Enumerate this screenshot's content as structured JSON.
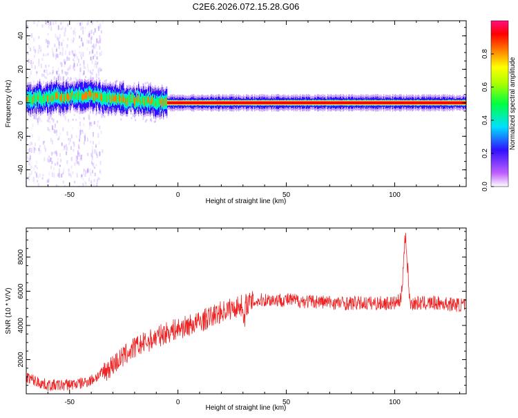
{
  "title": "C2E6.2026.072.15.28.G06",
  "chart_data": [
    {
      "type": "heatmap",
      "name": "spectrogram",
      "xlabel": "Height of straight line (km)",
      "ylabel": "Frequency (Hz)",
      "xlim": [
        -70,
        133
      ],
      "ylim": [
        -50,
        49
      ],
      "x_ticks": [
        -50,
        0,
        50,
        100
      ],
      "x_tick_labels": [
        "-50",
        "0",
        "50",
        "100"
      ],
      "y_ticks": [
        -40,
        -20,
        0,
        20,
        40
      ],
      "y_tick_labels": [
        "-40",
        "-20",
        "0",
        "20",
        "40"
      ],
      "colorbar": {
        "label": "Normalized spectral amplitude",
        "range": [
          0,
          1
        ],
        "ticks": [
          0.0,
          0.2,
          0.4,
          0.6,
          0.8
        ],
        "tick_labels": [
          "0.0",
          "0.2",
          "0.4",
          "0.6",
          "0.8"
        ],
        "colormap": [
          "#ffffff",
          "#c060ff",
          "#3010ff",
          "#00e0ff",
          "#00ff40",
          "#ffff00",
          "#ff8000",
          "#ff0000",
          "#ff1080"
        ]
      },
      "ridge": [
        {
          "x": -70,
          "y": 2
        },
        {
          "x": -60,
          "y": 3
        },
        {
          "x": -50,
          "y": 4
        },
        {
          "x": -42,
          "y": 5
        },
        {
          "x": -35,
          "y": 3
        },
        {
          "x": -25,
          "y": 2
        },
        {
          "x": -15,
          "y": 1
        },
        {
          "x": -5,
          "y": 0
        },
        {
          "x": 133,
          "y": 0
        }
      ]
    },
    {
      "type": "line",
      "name": "snr",
      "xlabel": "Height of straight line (km)",
      "ylabel": "SNR (10 * V/V)",
      "xlim": [
        -70,
        133
      ],
      "ylim": [
        0,
        9700
      ],
      "x_ticks": [
        -50,
        0,
        50,
        100
      ],
      "x_tick_labels": [
        "-50",
        "0",
        "50",
        "100"
      ],
      "y_ticks": [
        2000,
        4000,
        6000,
        8000
      ],
      "y_tick_labels": [
        "2000",
        "4000",
        "6000",
        "8000"
      ],
      "series": [
        {
          "color": "#ee2222",
          "x": [
            -70,
            -65,
            -60,
            -55,
            -50,
            -45,
            -40,
            -35,
            -30,
            -25,
            -20,
            -15,
            -10,
            -5,
            0,
            5,
            10,
            15,
            20,
            25,
            30,
            35,
            40,
            45,
            50,
            55,
            60,
            65,
            70,
            75,
            80,
            85,
            90,
            95,
            100,
            103,
            105,
            107,
            110,
            115,
            120,
            125,
            130,
            133
          ],
          "values": [
            1000,
            700,
            500,
            500,
            550,
            600,
            800,
            1200,
            1700,
            2200,
            2700,
            3000,
            3300,
            3600,
            3800,
            4000,
            4200,
            4500,
            4800,
            5000,
            5200,
            5400,
            5500,
            5500,
            5500,
            5450,
            5400,
            5400,
            5350,
            5300,
            5300,
            5300,
            5300,
            5300,
            5300,
            5500,
            9500,
            5300,
            5300,
            5300,
            5300,
            5250,
            5200,
            5200
          ]
        }
      ]
    }
  ]
}
